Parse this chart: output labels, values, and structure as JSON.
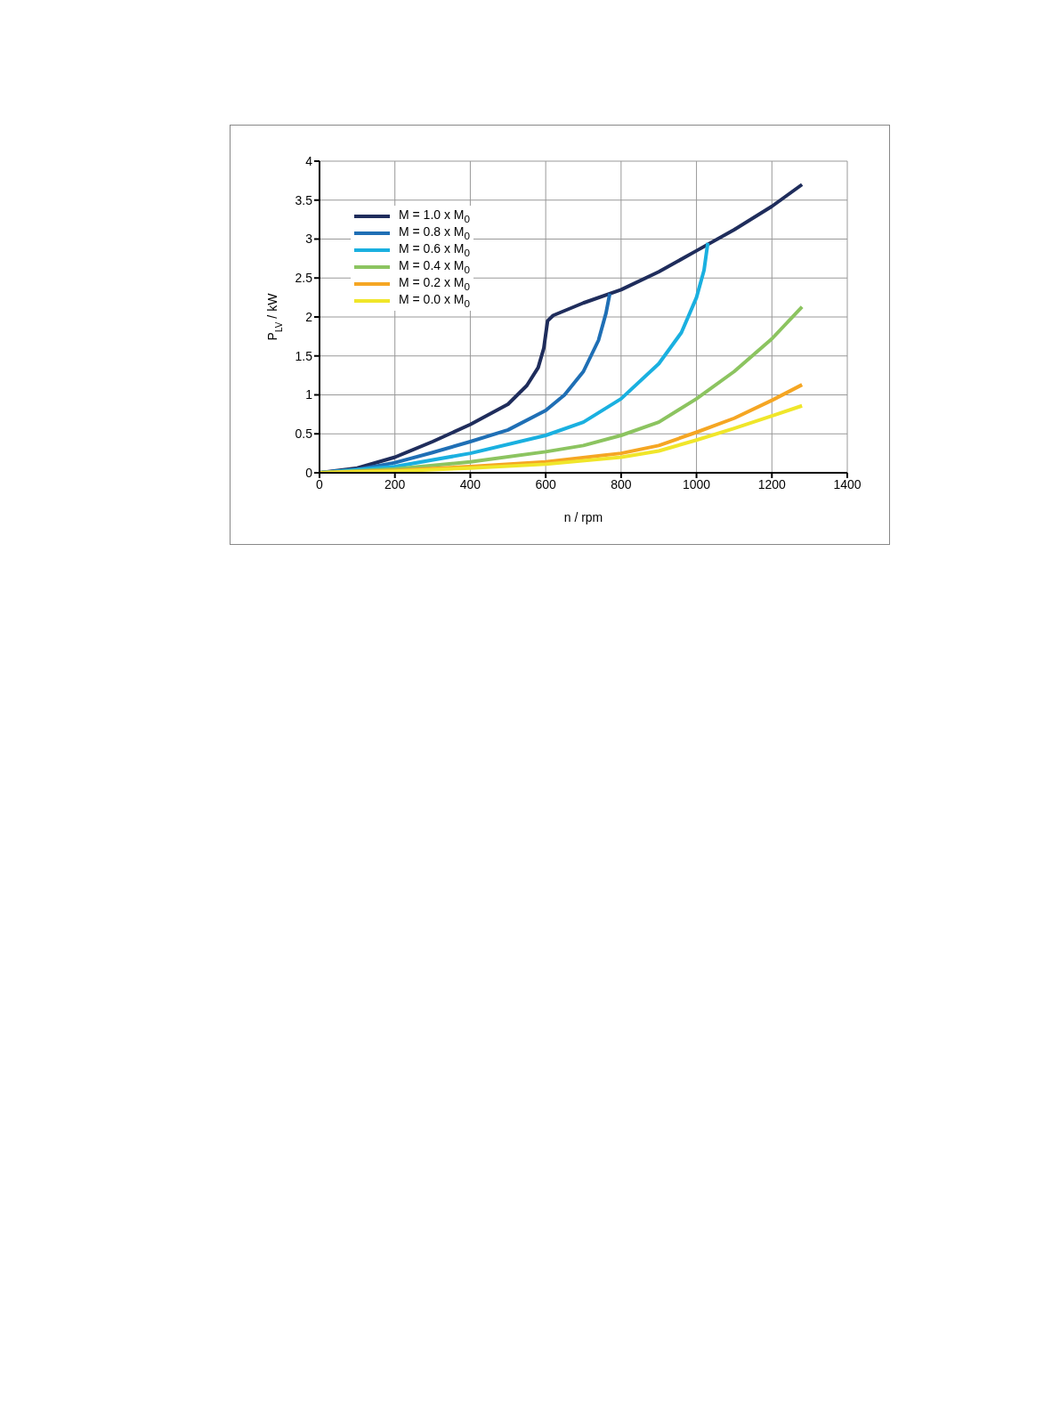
{
  "chart_data": {
    "type": "line",
    "xlabel": "n / rpm",
    "ylabel": "P$_{LV}$ / kW",
    "xlim": [
      0,
      1400
    ],
    "xticks": [
      0,
      200,
      400,
      600,
      800,
      1000,
      1200,
      1400
    ],
    "ylim": [
      0,
      4
    ],
    "yticks": [
      0,
      0.5,
      1,
      1.5,
      2,
      2.5,
      3,
      3.5,
      4
    ],
    "grid": true,
    "legend": "top left",
    "marker": "none",
    "line_style": "solid",
    "series": [
      {
        "name": "M = 1.0 x M$_{0}$",
        "color": "#1f2d5c",
        "x": [
          0,
          100,
          200,
          300,
          400,
          500,
          550,
          580,
          595,
          605,
          620,
          700,
          800,
          900,
          1000,
          1100,
          1200,
          1280
        ],
        "values": [
          0,
          0.06,
          0.2,
          0.4,
          0.62,
          0.88,
          1.12,
          1.35,
          1.6,
          1.95,
          2.02,
          2.18,
          2.35,
          2.58,
          2.85,
          3.12,
          3.42,
          3.7
        ]
      },
      {
        "name": "M = 0.8 x M$_{0}$",
        "color": "#1f6fb5",
        "x": [
          0,
          100,
          200,
          300,
          400,
          500,
          600,
          650,
          700,
          740,
          760,
          770
        ],
        "values": [
          0,
          0.04,
          0.13,
          0.26,
          0.4,
          0.55,
          0.8,
          1.0,
          1.3,
          1.7,
          2.05,
          2.3
        ]
      },
      {
        "name": "M = 0.6 x M$_{0}$",
        "color": "#1ab0e0",
        "x": [
          0,
          200,
          400,
          600,
          700,
          800,
          900,
          960,
          1000,
          1020,
          1030
        ],
        "values": [
          0,
          0.08,
          0.25,
          0.48,
          0.65,
          0.95,
          1.4,
          1.8,
          2.25,
          2.6,
          2.95
        ]
      },
      {
        "name": "M = 0.4 x M$_{0}$",
        "color": "#8cc460",
        "x": [
          0,
          200,
          400,
          600,
          700,
          800,
          900,
          1000,
          1100,
          1200,
          1280
        ],
        "values": [
          0,
          0.05,
          0.14,
          0.27,
          0.35,
          0.48,
          0.65,
          0.95,
          1.3,
          1.72,
          2.13
        ]
      },
      {
        "name": "M = 0.2 x M$_{0}$",
        "color": "#f5a623",
        "x": [
          0,
          200,
          400,
          600,
          800,
          900,
          1000,
          1100,
          1200,
          1280
        ],
        "values": [
          0,
          0.03,
          0.08,
          0.14,
          0.25,
          0.35,
          0.52,
          0.7,
          0.93,
          1.13
        ]
      },
      {
        "name": "M = 0.0 x M$_{0}$",
        "color": "#f0e62a",
        "x": [
          0,
          200,
          400,
          600,
          800,
          900,
          1000,
          1100,
          1200,
          1280
        ],
        "values": [
          0,
          0.02,
          0.06,
          0.11,
          0.2,
          0.28,
          0.42,
          0.57,
          0.73,
          0.86
        ]
      }
    ]
  }
}
